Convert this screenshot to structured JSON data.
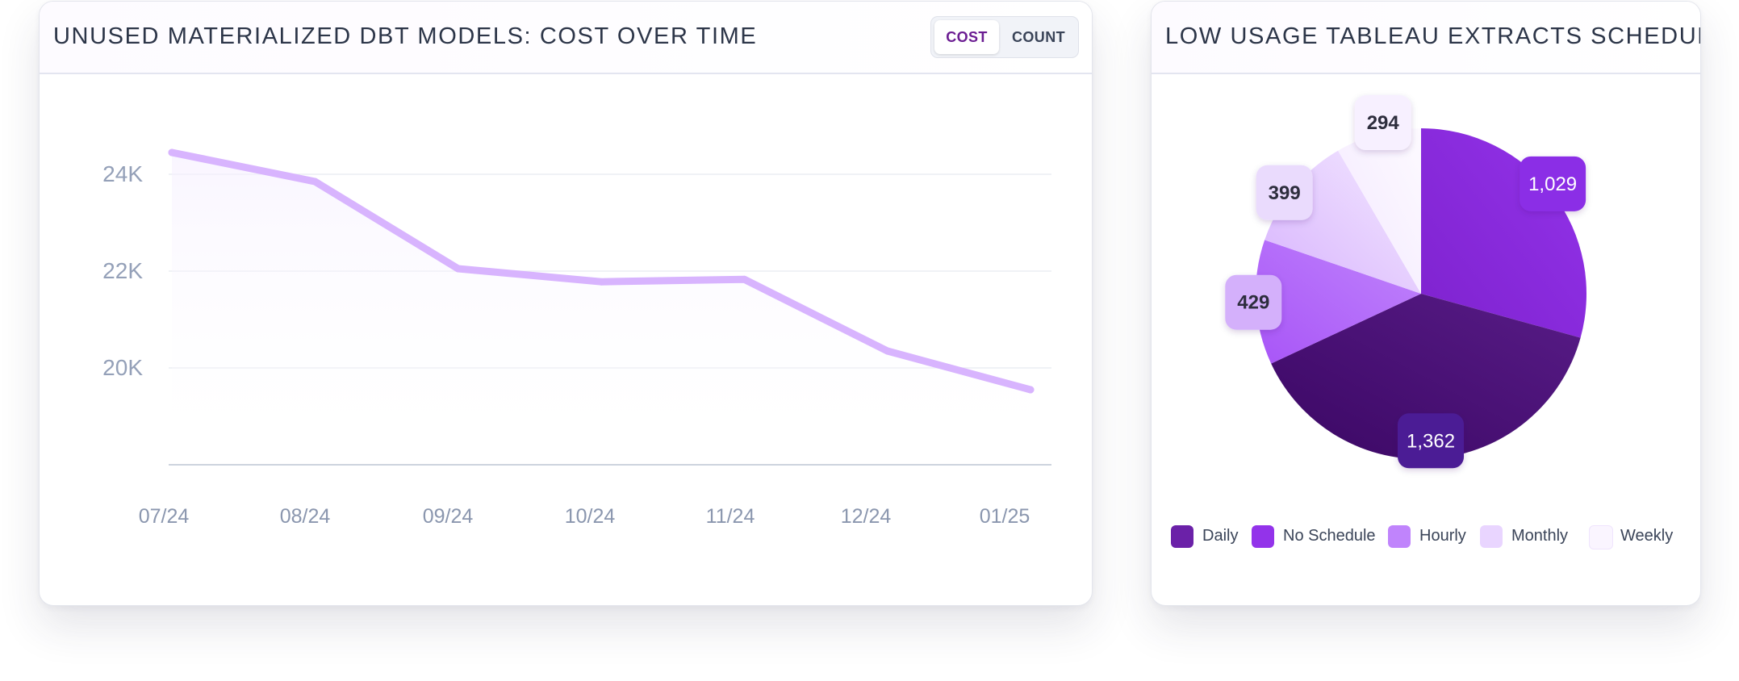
{
  "line_card": {
    "title": "UNUSED MATERIALIZED DBT MODELS: COST OVER TIME",
    "toggle": {
      "cost_label": "COST",
      "count_label": "COUNT",
      "selected": "COST"
    }
  },
  "pie_card": {
    "title": "LOW USAGE TABLEAU EXTRACTS SCHEDULE"
  },
  "colors": {
    "line": "#d8b4fe",
    "daily": "#6b21a8",
    "no_schedule": "#9333ea",
    "hourly": "#c084fc",
    "monthly": "#e9d5ff",
    "weekly": "#faf5ff"
  },
  "chart_data": [
    {
      "type": "line",
      "title": "UNUSED MATERIALIZED DBT MODELS: COST OVER TIME",
      "x": [
        "07/24",
        "08/24",
        "09/24",
        "10/24",
        "11/24",
        "12/24",
        "01/25"
      ],
      "series": [
        {
          "values": [
            24450,
            23850,
            22050,
            21780,
            21830,
            20350,
            19550
          ]
        }
      ],
      "y_ticks": [
        {
          "value": 24000,
          "label": "24K"
        },
        {
          "value": 22000,
          "label": "22K"
        },
        {
          "value": 20000,
          "label": "20K"
        }
      ],
      "ylim": [
        18000,
        25500
      ],
      "grid": true,
      "legend": "none"
    },
    {
      "type": "pie",
      "title": "LOW USAGE TABLEAU EXTRACTS SCHEDULE",
      "slices": [
        {
          "label": "No Schedule",
          "value": 1029,
          "display": "1,029",
          "color_key": "no_schedule"
        },
        {
          "label": "Daily",
          "value": 1362,
          "display": "1,362",
          "color_key": "daily"
        },
        {
          "label": "Hourly",
          "value": 429,
          "display": "429",
          "color_key": "hourly"
        },
        {
          "label": "Monthly",
          "value": 399,
          "display": "399",
          "color_key": "monthly"
        },
        {
          "label": "Weekly",
          "value": 294,
          "display": "294",
          "color_key": "weekly"
        }
      ],
      "legend_order": [
        "Daily",
        "No Schedule",
        "Hourly",
        "Monthly",
        "Weekly"
      ],
      "legend": "bottom"
    }
  ]
}
